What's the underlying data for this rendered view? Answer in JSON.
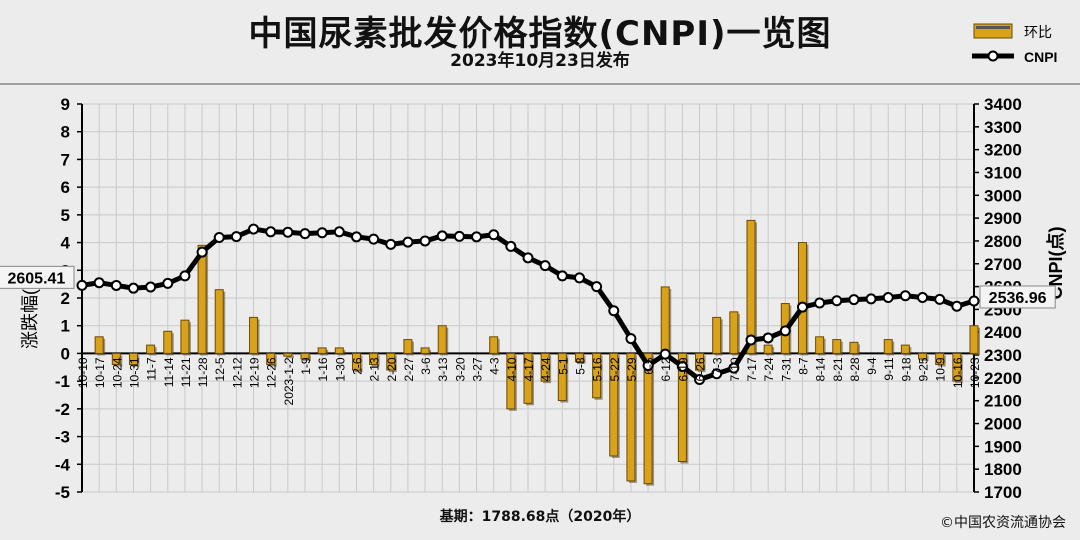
{
  "title": "中国尿素批发价格指数(CNPI)一览图",
  "subtitle": "2023年10月23日发布",
  "baseline_note": "基期：1788.68点（2020年）",
  "copyright": "©中国农资流通协会",
  "colors": {
    "background": "#ececec",
    "bar_fill": "#d9a21b",
    "bar_edge": "#6b4a08",
    "line": "#000000",
    "marker_fill": "#ffffff",
    "grid": "#c9c9c9"
  },
  "chart_data": {
    "type": "bar+line",
    "legend": {
      "position": "top-right",
      "bar_label": "环比",
      "line_label": "CNPI"
    },
    "left_axis": {
      "label": "涨跌幅(%)",
      "min": -5,
      "max": 9,
      "ticks": [
        9,
        8,
        7,
        6,
        5,
        4,
        3,
        2,
        1,
        0,
        -1,
        -2,
        -3,
        -4,
        -5
      ]
    },
    "right_axis": {
      "label": "CNPI(点)",
      "min": 1700,
      "max": 3400,
      "ticks": [
        3400,
        3300,
        3200,
        3100,
        3000,
        2900,
        2800,
        2700,
        2600,
        2500,
        2400,
        2300,
        2200,
        2100,
        2000,
        1900,
        1800,
        1700
      ]
    },
    "categories": [
      "10-10",
      "10-17",
      "10-24",
      "10-31",
      "11-7",
      "11-14",
      "11-21",
      "11-28",
      "12-5",
      "12-12",
      "12-19",
      "12-26",
      "2023-1-2",
      "1-9",
      "1-16",
      "1-30",
      "2-6",
      "2-13",
      "2-20",
      "2-27",
      "3-6",
      "3-13",
      "3-20",
      "3-27",
      "4-3",
      "4-10",
      "4-17",
      "4-24",
      "5-1",
      "5-8",
      "5-16",
      "5-22",
      "5-29",
      "6-5",
      "6-12",
      "6-19",
      "6-26",
      "7-3",
      "7-10",
      "7-17",
      "7-24",
      "7-31",
      "8-7",
      "8-14",
      "8-21",
      "8-28",
      "9-4",
      "9-11",
      "9-18",
      "9-25",
      "10-9",
      "10-16",
      "10-23"
    ],
    "series": [
      {
        "name": "环比",
        "kind": "bar",
        "values": [
          0.0,
          0.6,
          -0.4,
          -0.4,
          0.3,
          0.8,
          1.2,
          3.9,
          2.3,
          0.0,
          1.3,
          -0.4,
          -0.1,
          -0.2,
          0.2,
          0.2,
          -0.6,
          -0.4,
          -0.6,
          0.5,
          0.2,
          1.0,
          0.0,
          0.0,
          0.6,
          -2.0,
          -1.8,
          -1.0,
          -1.7,
          -0.3,
          -1.6,
          -3.7,
          -4.6,
          -4.7,
          2.4,
          -3.9,
          -0.6,
          1.3,
          1.5,
          4.8,
          0.3,
          1.8,
          4.0,
          0.6,
          0.5,
          0.4,
          0.0,
          0.5,
          0.3,
          -0.2,
          -0.4,
          -1.0,
          1.0
        ]
      },
      {
        "name": "CNPI",
        "kind": "line",
        "values": [
          2605.41,
          2617,
          2605,
          2593,
          2598,
          2614,
          2647,
          2751,
          2815,
          2819,
          2852,
          2840,
          2838,
          2832,
          2836,
          2840,
          2818,
          2808,
          2785,
          2795,
          2800,
          2822,
          2820,
          2818,
          2827,
          2776,
          2726,
          2692,
          2647,
          2638,
          2600,
          2494,
          2372,
          2254,
          2304,
          2250,
          2193,
          2218,
          2243,
          2366,
          2375,
          2406,
          2510,
          2528,
          2538,
          2543,
          2546,
          2552,
          2560,
          2552,
          2544,
          2514,
          2536.96
        ]
      }
    ],
    "annotations": {
      "first_value": "2605.41",
      "last_value": "2536.96"
    }
  }
}
